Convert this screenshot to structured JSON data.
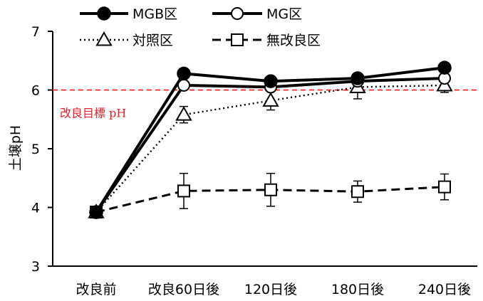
{
  "chart_data": {
    "type": "line",
    "categories": [
      "改良前",
      "改良60日後",
      "120日後",
      "180日後",
      "240日後"
    ],
    "ylabel": "土壌pH",
    "ylim": [
      3,
      7
    ],
    "yticks": [
      3,
      4,
      5,
      6,
      7
    ],
    "grid": false,
    "legend_position": "top",
    "reference_line": {
      "value": 6,
      "label": "改良目標 pH",
      "color": "#ff0000"
    },
    "series": [
      {
        "name": "MGB区",
        "marker": "filled-circle",
        "line": "solid",
        "values": [
          3.92,
          6.28,
          6.15,
          6.2,
          6.38
        ],
        "errors": [
          0.06,
          0.06,
          0.05,
          0.05,
          0.06
        ]
      },
      {
        "name": "MG区",
        "marker": "open-circle",
        "line": "solid",
        "values": [
          3.92,
          6.08,
          6.05,
          6.15,
          6.2
        ],
        "errors": [
          0.06,
          0.07,
          0.06,
          0.05,
          0.06
        ]
      },
      {
        "name": "対照区",
        "marker": "open-triangle",
        "line": "dotted",
        "values": [
          3.92,
          5.58,
          5.82,
          6.05,
          6.08
        ],
        "errors": [
          0.06,
          0.14,
          0.16,
          0.2,
          0.12
        ]
      },
      {
        "name": "無改良区",
        "marker": "open-square",
        "line": "dashed",
        "values": [
          3.92,
          4.28,
          4.3,
          4.27,
          4.35
        ],
        "errors": [
          0.06,
          0.3,
          0.28,
          0.18,
          0.22
        ]
      }
    ]
  }
}
